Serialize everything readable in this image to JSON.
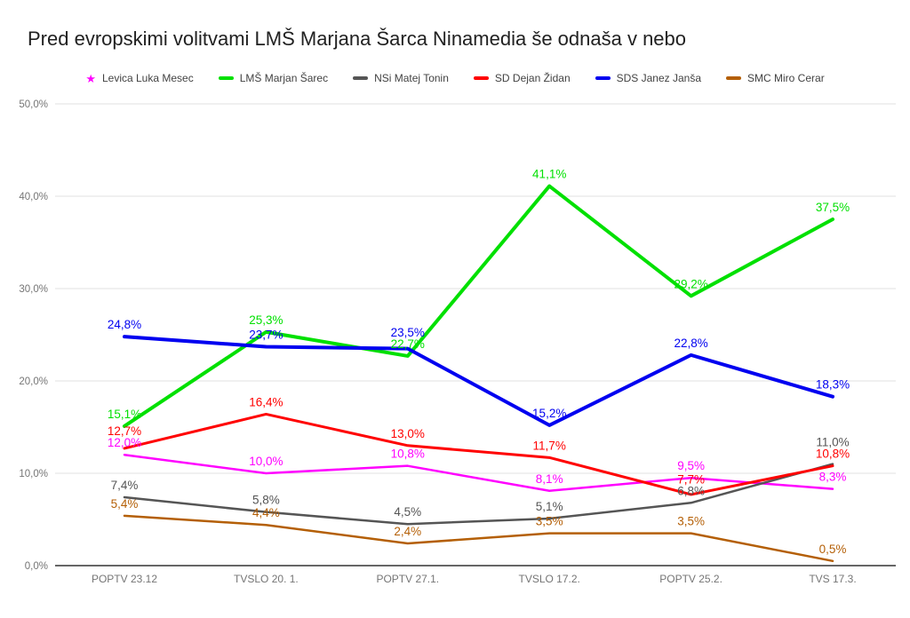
{
  "title": "Pred evropskimi volitvami LMŠ Marjana Šarca Ninamedia še odnaša v nebo",
  "chart_data": {
    "type": "line",
    "title": "Pred evropskimi volitvami LMŠ Marjana Šarca Ninamedia še odnaša v nebo",
    "xlabel": "",
    "ylabel": "",
    "ylim": [
      0,
      50
    ],
    "grid": true,
    "legend_position": "top",
    "axis_label_color": "#757575",
    "gridline_color": "#e6e6e6",
    "baseline_color": "#333333",
    "categories": [
      "POPTV 23.12",
      "TVSLO 20. 1.",
      "POPTV 27.1.",
      "TVSLO 17.2.",
      "POPTV 25.2.",
      "TVS 17.3."
    ],
    "y_ticks": [
      {
        "value": 0,
        "label": "0,0%"
      },
      {
        "value": 10,
        "label": "10,0%"
      },
      {
        "value": 20,
        "label": "20,0%"
      },
      {
        "value": 30,
        "label": "30,0%"
      },
      {
        "value": 40,
        "label": "40,0%"
      },
      {
        "value": 50,
        "label": "50,0%"
      }
    ],
    "series": [
      {
        "name": "Levica Luka Mesec",
        "color": "#ff00ff",
        "marker": "star",
        "line_width": 2.5,
        "values": [
          12.0,
          10.0,
          10.8,
          8.1,
          9.5,
          8.3
        ],
        "labels": [
          "12,0%",
          "10,0%",
          "10,8%",
          "8,1%",
          "9,5%",
          "8,3%"
        ]
      },
      {
        "name": "LMŠ Marjan Šarec",
        "color": "#00e000",
        "marker": "line",
        "line_width": 4,
        "values": [
          15.1,
          25.3,
          22.7,
          41.1,
          29.2,
          37.5
        ],
        "labels": [
          "15,1%",
          "25,3%",
          "22,7%",
          "41,1%",
          "29,2%",
          "37,5%"
        ]
      },
      {
        "name": "NSi Matej Tonin",
        "color": "#555555",
        "marker": "line",
        "line_width": 2.5,
        "values": [
          7.4,
          5.8,
          4.5,
          5.1,
          6.8,
          11.0
        ],
        "labels": [
          "7,4%",
          "5,8%",
          "4,5%",
          "5,1%",
          "6,8%",
          "11,0%"
        ]
      },
      {
        "name": "SD Dejan Židan",
        "color": "#ff0000",
        "marker": "line",
        "line_width": 3,
        "values": [
          12.7,
          16.4,
          13.0,
          11.7,
          7.7,
          10.8
        ],
        "labels": [
          "12,7%",
          "16,4%",
          "13,0%",
          "11,7%",
          "7,7%",
          "10,8%"
        ]
      },
      {
        "name": "SDS Janez Janša",
        "color": "#0000f0",
        "marker": "line",
        "line_width": 4,
        "values": [
          24.8,
          23.7,
          23.5,
          15.2,
          22.8,
          18.3
        ],
        "labels": [
          "24,8%",
          "23,7%",
          "23,5%",
          "15,2%",
          "22,8%",
          "18,3%"
        ]
      },
      {
        "name": "SMC Miro Cerar",
        "color": "#b45f06",
        "marker": "line",
        "line_width": 2.5,
        "values": [
          5.4,
          4.4,
          2.4,
          3.5,
          3.5,
          0.5
        ],
        "labels": [
          "5,4%",
          "4,4%",
          "2,4%",
          "3,5%",
          "3,5%",
          "0,5%"
        ]
      }
    ]
  }
}
